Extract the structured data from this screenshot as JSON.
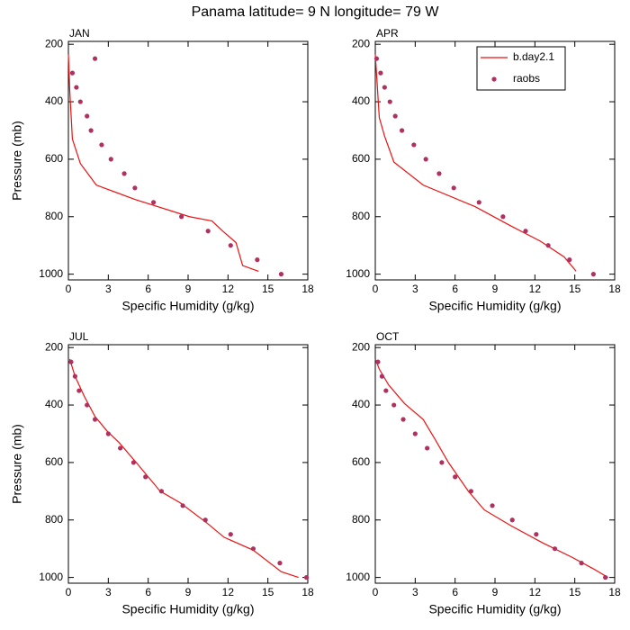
{
  "title": "Panama  latitude= 9 N longitude= 79 W",
  "chart_data": [
    {
      "type": "line",
      "title": "JAN",
      "xlabel": "Specific Humidity (g/kg)",
      "ylabel": "Pressure (mb)",
      "xlim": [
        0,
        18
      ],
      "xticks": [
        0,
        3,
        6,
        9,
        12,
        15,
        18
      ],
      "ylim": [
        190,
        1020
      ],
      "yticks": [
        200,
        400,
        600,
        800,
        1000
      ],
      "y_inverted": true,
      "series": [
        {
          "mode": "line",
          "color": "#ee1111",
          "x": [
            0,
            0.1,
            0.3,
            0.9,
            2.1,
            5,
            9.1,
            10.8,
            11.6,
            12.6,
            13.1,
            14.3
          ],
          "y": [
            235,
            360,
            530,
            615,
            690,
            740,
            800,
            815,
            850,
            890,
            970,
            990
          ]
        },
        {
          "mode": "markers",
          "color": "#b03060",
          "x": [
            2,
            0.3,
            0.6,
            0.9,
            1.4,
            1.7,
            2.5,
            3.2,
            4.2,
            5,
            6.4,
            8.5,
            10.5,
            12.2,
            14.2,
            16
          ],
          "y": [
            250,
            300,
            350,
            400,
            450,
            500,
            550,
            600,
            650,
            700,
            750,
            800,
            850,
            900,
            950,
            1000
          ]
        }
      ]
    },
    {
      "type": "line",
      "title": "APR",
      "xlabel": "Specific Humidity (g/kg)",
      "xlim": [
        0,
        18
      ],
      "xticks": [
        0,
        3,
        6,
        9,
        12,
        15,
        18
      ],
      "ylim": [
        190,
        1020
      ],
      "yticks": [
        200,
        400,
        600,
        800,
        1000
      ],
      "y_inverted": true,
      "legend": "upper right",
      "series": [
        {
          "name": "b.day2.1",
          "mode": "line",
          "color": "#ee1111",
          "x": [
            0,
            0.3,
            0.7,
            1.4,
            3.6,
            7.5,
            10.1,
            12.4,
            14.2,
            15.1
          ],
          "y": [
            235,
            455,
            520,
            610,
            690,
            765,
            830,
            885,
            940,
            990
          ]
        },
        {
          "name": "raobs",
          "mode": "markers",
          "color": "#b03060",
          "x": [
            0.1,
            0.4,
            0.7,
            1.1,
            1.5,
            2,
            2.9,
            3.8,
            4.8,
            5.9,
            7.8,
            9.6,
            11.3,
            13,
            14.6,
            16.4
          ],
          "y": [
            250,
            300,
            350,
            400,
            450,
            500,
            550,
            600,
            650,
            700,
            750,
            800,
            850,
            900,
            950,
            1000
          ]
        }
      ]
    },
    {
      "type": "line",
      "title": "JUL",
      "xlabel": "Specific Humidity (g/kg)",
      "ylabel": "Pressure (mb)",
      "xlim": [
        0,
        18
      ],
      "xticks": [
        0,
        3,
        6,
        9,
        12,
        15,
        18
      ],
      "ylim": [
        190,
        1020
      ],
      "yticks": [
        200,
        400,
        600,
        800,
        1000
      ],
      "y_inverted": true,
      "series": [
        {
          "mode": "line",
          "color": "#ee1111",
          "x": [
            0.1,
            0.5,
            1.2,
            2,
            2.9,
            3.8,
            5.1,
            6.9,
            8.4,
            10.4,
            11.7,
            13.9,
            16,
            17.3
          ],
          "y": [
            240,
            300,
            370,
            440,
            490,
            530,
            600,
            700,
            740,
            810,
            860,
            905,
            980,
            1000
          ]
        },
        {
          "mode": "markers",
          "color": "#b03060",
          "x": [
            0.2,
            0.5,
            0.8,
            1.4,
            2,
            3,
            3.9,
            4.9,
            5.8,
            7,
            8.6,
            10.3,
            12.2,
            13.9,
            15.9,
            17.9
          ],
          "y": [
            250,
            300,
            350,
            400,
            450,
            500,
            550,
            600,
            650,
            700,
            750,
            800,
            850,
            900,
            950,
            1000
          ]
        }
      ]
    },
    {
      "type": "line",
      "title": "OCT",
      "xlabel": "Specific Humidity (g/kg)",
      "xlim": [
        0,
        18
      ],
      "xticks": [
        0,
        3,
        6,
        9,
        12,
        15,
        18
      ],
      "ylim": [
        190,
        1020
      ],
      "yticks": [
        200,
        400,
        600,
        800,
        1000
      ],
      "y_inverted": true,
      "series": [
        {
          "mode": "line",
          "color": "#ee1111",
          "x": [
            0,
            0.3,
            1,
            2.2,
            3.6,
            4.5,
            5.5,
            7,
            8.2,
            10.2,
            12.6,
            14.8,
            16.4,
            17.5
          ],
          "y": [
            240,
            275,
            330,
            395,
            450,
            520,
            600,
            700,
            765,
            820,
            880,
            930,
            970,
            1000
          ]
        },
        {
          "mode": "markers",
          "color": "#b03060",
          "x": [
            0.2,
            0.5,
            0.8,
            1.4,
            2.1,
            3,
            3.9,
            5,
            6,
            7.2,
            8.8,
            10.3,
            12.1,
            13.5,
            15.5,
            17.3
          ],
          "y": [
            250,
            300,
            350,
            400,
            450,
            500,
            550,
            600,
            650,
            700,
            750,
            800,
            850,
            900,
            950,
            1000
          ]
        }
      ]
    }
  ]
}
